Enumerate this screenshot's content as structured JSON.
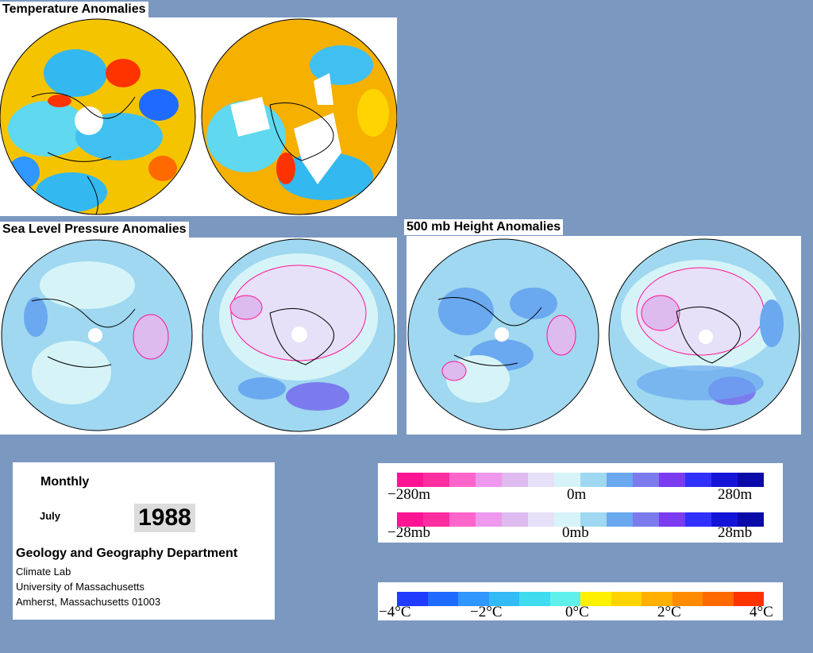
{
  "titles": {
    "temperature": "Temperature Anomalies",
    "slp": "Sea Level Pressure Anomalies",
    "height": "500 mb Height Anomalies"
  },
  "info": {
    "period": "Monthly",
    "month": "July",
    "year": "1988",
    "department": "Geology and Geography Department",
    "lab": "Climate Lab",
    "university": "University of Massachusetts",
    "address": "Amherst, Massachusetts 01003"
  },
  "legends": {
    "height": {
      "min": "−280m",
      "mid": "0m",
      "max": "280m"
    },
    "pressure": {
      "min": "−28mb",
      "mid": "0mb",
      "max": "28mb"
    },
    "temperature": {
      "t1": "−4°C",
      "t2": "−2°C",
      "t3": "0°C",
      "t4": "2°C",
      "t5": "4°C"
    }
  },
  "colors": {
    "background": "#7b98c1",
    "pressure_scale": [
      "#ff1493",
      "#ff2ea0",
      "#ff66cc",
      "#ee99ee",
      "#ddbbee",
      "#e6e0f8",
      "#d6f4f8",
      "#9fd8f0",
      "#6aa8f0",
      "#7b7bee",
      "#7b3cf0",
      "#3030ff",
      "#1414d8",
      "#0a0aa8"
    ],
    "temperature_scale": [
      "#1f3cff",
      "#1f6bff",
      "#2f97ff",
      "#33bbf4",
      "#3fdcf0",
      "#5ff0ec",
      "#fff100",
      "#ffd400",
      "#ffb000",
      "#ff8c00",
      "#ff6a00",
      "#ff3300"
    ]
  }
}
